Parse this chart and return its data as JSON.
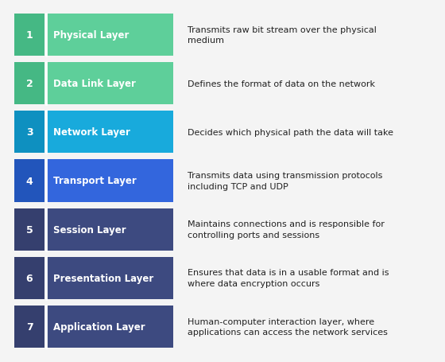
{
  "layers": [
    {
      "number": "7",
      "name": "Application Layer",
      "description": "Human-computer interaction layer, where\napplications can access the network services",
      "num_bg": "#353f6e",
      "bar_bg": "#3d4a80"
    },
    {
      "number": "6",
      "name": "Presentation Layer",
      "description": "Ensures that data is in a usable format and is\nwhere data encryption occurs",
      "num_bg": "#353f6e",
      "bar_bg": "#3d4a80"
    },
    {
      "number": "5",
      "name": "Session Layer",
      "description": "Maintains connections and is responsible for\ncontrolling ports and sessions",
      "num_bg": "#353f6e",
      "bar_bg": "#3d4a80"
    },
    {
      "number": "4",
      "name": "Transport Layer",
      "description": "Transmits data using transmission protocols\nincluding TCP and UDP",
      "num_bg": "#2255bb",
      "bar_bg": "#3366dd"
    },
    {
      "number": "3",
      "name": "Network Layer",
      "description": "Decides which physical path the data will take",
      "num_bg": "#0e90c0",
      "bar_bg": "#18aadc"
    },
    {
      "number": "2",
      "name": "Data Link Layer",
      "description": "Defines the format of data on the network",
      "num_bg": "#45b884",
      "bar_bg": "#5ecf9a"
    },
    {
      "number": "1",
      "name": "Physical Layer",
      "description": "Transmits raw bit stream over the physical\nmedium",
      "num_bg": "#45b884",
      "bar_bg": "#5ecf9a"
    }
  ],
  "background_color": "#f4f4f4",
  "text_color_light": "#ffffff",
  "text_color_dark": "#222222",
  "desc_color": "#222222",
  "fig_width": 5.6,
  "fig_height": 4.56,
  "dpi": 100
}
